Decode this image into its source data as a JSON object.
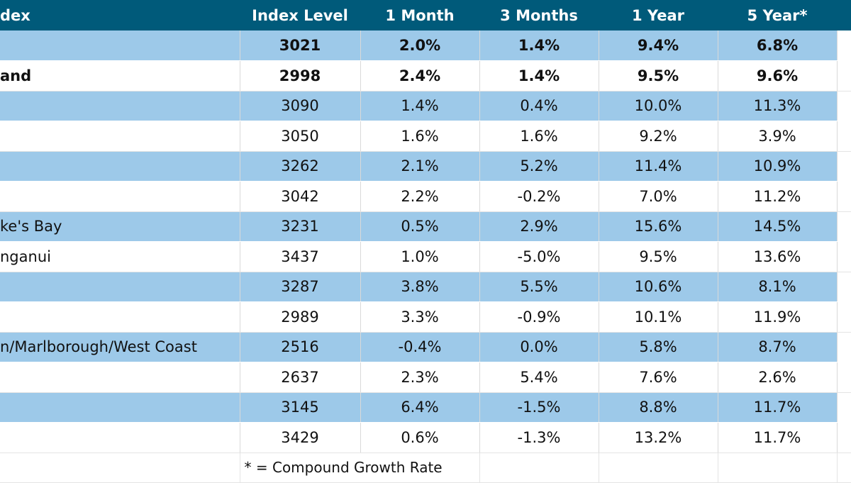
{
  "table": {
    "headers": [
      "dex",
      "Index Level",
      "1 Month",
      "3 Months",
      "1 Year",
      "5 Year*"
    ],
    "rows": [
      {
        "region": "",
        "index": "3021",
        "m1": "2.0%",
        "m3": "1.4%",
        "y1": "9.4%",
        "y5": "6.8%"
      },
      {
        "region": "and",
        "index": "2998",
        "m1": "2.4%",
        "m3": "1.4%",
        "y1": "9.5%",
        "y5": "9.6%"
      },
      {
        "region": "",
        "index": "3090",
        "m1": "1.4%",
        "m3": "0.4%",
        "y1": "10.0%",
        "y5": "11.3%"
      },
      {
        "region": "",
        "index": "3050",
        "m1": "1.6%",
        "m3": "1.6%",
        "y1": "9.2%",
        "y5": "3.9%"
      },
      {
        "region": "",
        "index": "3262",
        "m1": "2.1%",
        "m3": "5.2%",
        "y1": "11.4%",
        "y5": "10.9%"
      },
      {
        "region": "",
        "index": "3042",
        "m1": "2.2%",
        "m3": "-0.2%",
        "y1": "7.0%",
        "y5": "11.2%"
      },
      {
        "region": "ke's Bay",
        "index": "3231",
        "m1": "0.5%",
        "m3": "2.9%",
        "y1": "15.6%",
        "y5": "14.5%"
      },
      {
        "region": "nganui",
        "index": "3437",
        "m1": "1.0%",
        "m3": "-5.0%",
        "y1": "9.5%",
        "y5": "13.6%"
      },
      {
        "region": "",
        "index": "3287",
        "m1": "3.8%",
        "m3": "5.5%",
        "y1": "10.6%",
        "y5": "8.1%"
      },
      {
        "region": "",
        "index": "2989",
        "m1": "3.3%",
        "m3": "-0.9%",
        "y1": "10.1%",
        "y5": "11.9%"
      },
      {
        "region": "n/Marlborough/West Coast",
        "index": "2516",
        "m1": "-0.4%",
        "m3": "0.0%",
        "y1": "5.8%",
        "y5": "8.7%"
      },
      {
        "region": "",
        "index": "2637",
        "m1": "2.3%",
        "m3": "5.4%",
        "y1": "7.6%",
        "y5": "2.6%"
      },
      {
        "region": "",
        "index": "3145",
        "m1": "6.4%",
        "m3": "-1.5%",
        "y1": "8.8%",
        "y5": "11.7%"
      },
      {
        "region": "",
        "index": "3429",
        "m1": "0.6%",
        "m3": "-1.3%",
        "y1": "13.2%",
        "y5": "11.7%"
      }
    ],
    "footnote": "* = Compound Growth Rate"
  },
  "colors": {
    "header": "#005a7a",
    "band": "#9dc9e9",
    "accent": "#3aa64f"
  }
}
